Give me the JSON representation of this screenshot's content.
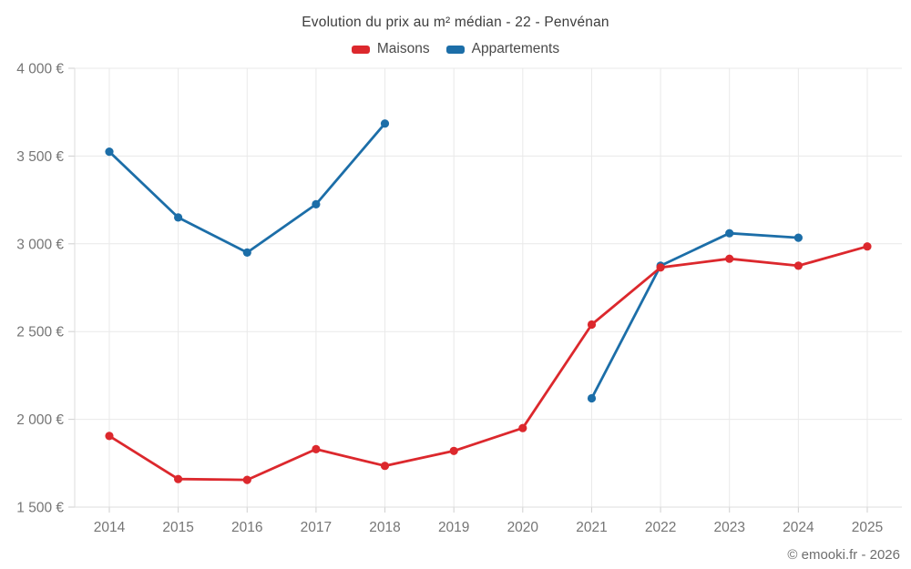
{
  "title": "Evolution du prix au m² médian - 22 - Penvénan",
  "legend": [
    {
      "label": "Maisons",
      "color": "#dc282d"
    },
    {
      "label": "Appartements",
      "color": "#1c6ea8"
    }
  ],
  "copyright": "© emooki.fr - 2026",
  "colors": {
    "maisons": "#dc282d",
    "appartements": "#1c6ea8",
    "gridline": "#e9e9e9",
    "axis": "#dddddd",
    "tick": "#cfcfcf",
    "axis_label": "#757575"
  },
  "chart_data": {
    "type": "line",
    "title": "Evolution du prix au m² médian - 22 - Penvénan",
    "categories": [
      "2014",
      "2015",
      "2016",
      "2017",
      "2018",
      "2019",
      "2020",
      "2021",
      "2022",
      "2023",
      "2024",
      "2025"
    ],
    "series": [
      {
        "name": "Maisons",
        "color": "#dc282d",
        "values": [
          1905,
          1660,
          1655,
          1830,
          1735,
          1820,
          1950,
          2540,
          2865,
          2915,
          2875,
          2985
        ]
      },
      {
        "name": "Appartements",
        "color": "#1c6ea8",
        "values": [
          3525,
          3150,
          2950,
          3225,
          3685,
          null,
          null,
          2120,
          2875,
          3060,
          3035,
          null
        ]
      }
    ],
    "ylim": [
      1500,
      4000
    ],
    "yticks": [
      {
        "value": 1500,
        "label": "1 500 €"
      },
      {
        "value": 2000,
        "label": "2 000 €"
      },
      {
        "value": 2500,
        "label": "2 500 €"
      },
      {
        "value": 3000,
        "label": "3 000 €"
      },
      {
        "value": 3500,
        "label": "3 500 €"
      },
      {
        "value": 4000,
        "label": "4 000 €"
      }
    ],
    "xlabel": "",
    "ylabel": "",
    "grid": true,
    "legend_position": "top"
  }
}
